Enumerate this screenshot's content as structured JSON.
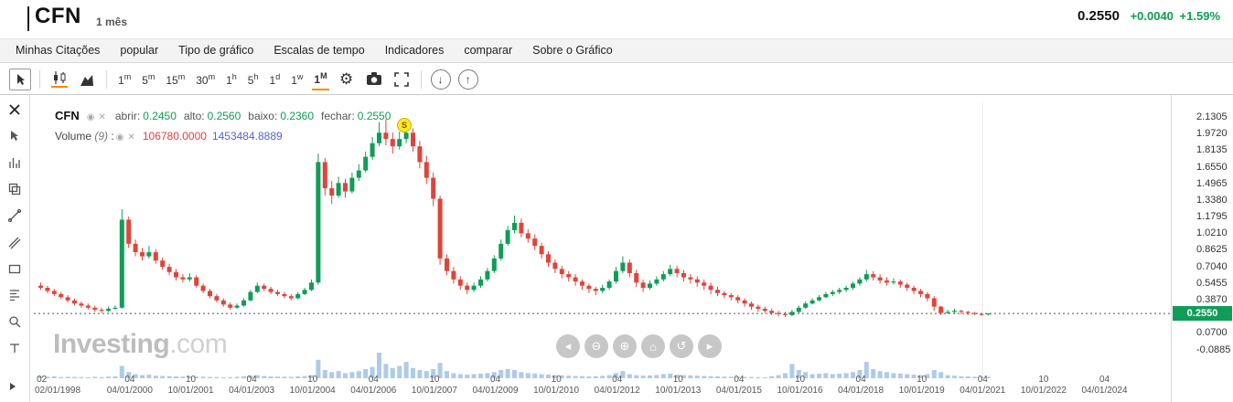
{
  "header": {
    "symbol": "CFN",
    "timeframe": "1 mês",
    "price": "0.2550",
    "change": "+0.0040",
    "change_pct": "+1.59%"
  },
  "menu": {
    "items": [
      "Minhas Citações",
      "popular",
      "Tipo de gráfico",
      "Escalas de tempo",
      "Indicadores",
      "comparar",
      "Sobre o Gráfico"
    ]
  },
  "toolbar": {
    "timeframes": [
      {
        "num": "1",
        "unit": "m"
      },
      {
        "num": "5",
        "unit": "m"
      },
      {
        "num": "15",
        "unit": "m"
      },
      {
        "num": "30",
        "unit": "m"
      },
      {
        "num": "1",
        "unit": "h"
      },
      {
        "num": "5",
        "unit": "h"
      },
      {
        "num": "1",
        "unit": "d"
      },
      {
        "num": "1",
        "unit": "w"
      },
      {
        "num": "1",
        "unit": "M"
      }
    ],
    "active_timeframe": "1M",
    "icons": [
      "cursor",
      "candlestick-chart",
      "area-chart",
      "settings-gear",
      "camera-snapshot",
      "fullscreen",
      "save-chart",
      "load-chart"
    ]
  },
  "sidebar": {
    "tools": [
      "close",
      "cursor",
      "bar-tools",
      "clone",
      "trendline",
      "pitchfork",
      "shapes",
      "fibonacci",
      "zoom",
      "text",
      "expand"
    ]
  },
  "legend": {
    "symbol": "CFN",
    "open_label": "abrir:",
    "open_value": "0.2450",
    "high_label": "alto:",
    "high_value": "0.2560",
    "low_label": "baixo:",
    "low_value": "0.2360",
    "close_label": "fechar:",
    "close_value": "0.2550",
    "volume_label": "Volume",
    "volume_period": "(9)",
    "colon": ":",
    "volume_value": "106780.0000",
    "volume_ma_value": "1453484.8889"
  },
  "marker": {
    "label": "S"
  },
  "watermark": {
    "name": "Investing",
    "suffix": ".com"
  },
  "nav_buttons": [
    {
      "name": "pan-left",
      "glyph": "◂"
    },
    {
      "name": "zoom-out",
      "glyph": "⊖"
    },
    {
      "name": "zoom-in",
      "glyph": "⊕"
    },
    {
      "name": "zoom-reset",
      "glyph": "⌂"
    },
    {
      "name": "refresh",
      "glyph": "↺"
    },
    {
      "name": "pan-right",
      "glyph": "▸"
    }
  ],
  "price_axis": {
    "current": "0.2550",
    "labels": [
      {
        "text": "2.1305",
        "value": 2.1305
      },
      {
        "text": "1.9720",
        "value": 1.972
      },
      {
        "text": "1.8135",
        "value": 1.8135
      },
      {
        "text": "1.6550",
        "value": 1.655
      },
      {
        "text": "1.4965",
        "value": 1.4965
      },
      {
        "text": "1.3380",
        "value": 1.338
      },
      {
        "text": "1.1795",
        "value": 1.1795
      },
      {
        "text": "1.0210",
        "value": 1.021
      },
      {
        "text": "0.8625",
        "value": 0.8625
      },
      {
        "text": "0.7040",
        "value": 0.704
      },
      {
        "text": "0.5455",
        "value": 0.5455
      },
      {
        "text": "0.3870",
        "value": 0.387
      },
      {
        "text": "0.0700",
        "value": 0.07
      },
      {
        "text": "-0.0885",
        "value": -0.0885
      }
    ]
  },
  "x_axis": {
    "ticks": [
      {
        "month": "02",
        "date": "02/01/1998",
        "m": 1
      },
      {
        "month": "04",
        "date": "04/01/2000",
        "m": 27
      },
      {
        "month": "10",
        "date": "10/01/2001",
        "m": 45
      },
      {
        "month": "04",
        "date": "04/01/2003",
        "m": 63
      },
      {
        "month": "10",
        "date": "10/01/2004",
        "m": 81
      },
      {
        "month": "04",
        "date": "04/01/2006",
        "m": 99
      },
      {
        "month": "10",
        "date": "10/01/2007",
        "m": 117
      },
      {
        "month": "04",
        "date": "04/01/2009",
        "m": 135
      },
      {
        "month": "10",
        "date": "10/01/2010",
        "m": 153
      },
      {
        "month": "04",
        "date": "04/01/2012",
        "m": 171
      },
      {
        "month": "10",
        "date": "10/01/2013",
        "m": 189
      },
      {
        "month": "04",
        "date": "04/01/2015",
        "m": 207
      },
      {
        "month": "10",
        "date": "10/01/2016",
        "m": 225
      },
      {
        "month": "04",
        "date": "04/01/2018",
        "m": 243
      },
      {
        "month": "10",
        "date": "10/01/2019",
        "m": 261
      },
      {
        "month": "04",
        "date": "04/01/2021",
        "m": 279
      },
      {
        "month": "10",
        "date": "10/01/2022",
        "m": 297
      },
      {
        "month": "04",
        "date": "04/01/2024",
        "m": 315
      }
    ]
  },
  "chart_data": {
    "type": "candlestick",
    "symbol": "CFN",
    "interval": "monthly",
    "x_start": "1998-01",
    "months_per_candle": 2,
    "current_price": 0.255,
    "y_axis": {
      "min": -0.0885,
      "max": 2.1305,
      "tick_step": 0.1585
    },
    "colors": {
      "up": "#0f9d58",
      "down": "#e0443a",
      "volume": "#aecbe8",
      "current_line": "#555555",
      "badge": "#0f9d58"
    },
    "ohlc": [
      [
        0.52,
        0.55,
        0.48,
        0.5
      ],
      [
        0.5,
        0.52,
        0.45,
        0.47
      ],
      [
        0.47,
        0.49,
        0.42,
        0.44
      ],
      [
        0.44,
        0.46,
        0.39,
        0.41
      ],
      [
        0.41,
        0.43,
        0.36,
        0.38
      ],
      [
        0.38,
        0.4,
        0.33,
        0.35
      ],
      [
        0.35,
        0.37,
        0.31,
        0.33
      ],
      [
        0.33,
        0.35,
        0.29,
        0.31
      ],
      [
        0.31,
        0.33,
        0.27,
        0.29
      ],
      [
        0.29,
        0.31,
        0.26,
        0.28
      ],
      [
        0.28,
        0.32,
        0.27,
        0.3
      ],
      [
        0.3,
        0.33,
        0.29,
        0.31
      ],
      [
        0.31,
        1.25,
        0.3,
        1.15
      ],
      [
        1.15,
        1.18,
        0.88,
        0.92
      ],
      [
        0.92,
        0.96,
        0.8,
        0.84
      ],
      [
        0.84,
        0.88,
        0.76,
        0.8
      ],
      [
        0.8,
        0.9,
        0.78,
        0.84
      ],
      [
        0.84,
        0.87,
        0.73,
        0.76
      ],
      [
        0.76,
        0.79,
        0.67,
        0.7
      ],
      [
        0.7,
        0.73,
        0.62,
        0.65
      ],
      [
        0.65,
        0.68,
        0.57,
        0.6
      ],
      [
        0.6,
        0.63,
        0.55,
        0.58
      ],
      [
        0.58,
        0.64,
        0.56,
        0.6
      ],
      [
        0.6,
        0.62,
        0.5,
        0.52
      ],
      [
        0.52,
        0.54,
        0.45,
        0.47
      ],
      [
        0.47,
        0.49,
        0.4,
        0.42
      ],
      [
        0.42,
        0.44,
        0.36,
        0.38
      ],
      [
        0.38,
        0.4,
        0.32,
        0.34
      ],
      [
        0.34,
        0.36,
        0.29,
        0.31
      ],
      [
        0.31,
        0.35,
        0.3,
        0.33
      ],
      [
        0.33,
        0.4,
        0.32,
        0.38
      ],
      [
        0.38,
        0.48,
        0.37,
        0.46
      ],
      [
        0.46,
        0.55,
        0.45,
        0.52
      ],
      [
        0.52,
        0.54,
        0.47,
        0.49
      ],
      [
        0.49,
        0.51,
        0.44,
        0.46
      ],
      [
        0.46,
        0.48,
        0.42,
        0.44
      ],
      [
        0.44,
        0.46,
        0.4,
        0.42
      ],
      [
        0.42,
        0.44,
        0.38,
        0.4
      ],
      [
        0.4,
        0.46,
        0.39,
        0.44
      ],
      [
        0.44,
        0.5,
        0.43,
        0.48
      ],
      [
        0.48,
        0.58,
        0.47,
        0.55
      ],
      [
        0.55,
        1.78,
        0.53,
        1.7
      ],
      [
        1.7,
        1.74,
        1.38,
        1.45
      ],
      [
        1.45,
        1.52,
        1.3,
        1.38
      ],
      [
        1.38,
        1.56,
        1.36,
        1.5
      ],
      [
        1.5,
        1.54,
        1.36,
        1.42
      ],
      [
        1.42,
        1.6,
        1.4,
        1.55
      ],
      [
        1.55,
        1.68,
        1.52,
        1.62
      ],
      [
        1.62,
        1.8,
        1.6,
        1.75
      ],
      [
        1.75,
        1.94,
        1.72,
        1.88
      ],
      [
        1.88,
        2.08,
        1.85,
        1.98
      ],
      [
        1.98,
        2.11,
        1.86,
        1.92
      ],
      [
        1.92,
        1.98,
        1.78,
        1.85
      ],
      [
        1.85,
        1.99,
        1.82,
        1.92
      ],
      [
        1.92,
        2.06,
        1.88,
        1.98
      ],
      [
        1.98,
        2.02,
        1.8,
        1.85
      ],
      [
        1.85,
        1.9,
        1.64,
        1.7
      ],
      [
        1.7,
        1.76,
        1.49,
        1.55
      ],
      [
        1.55,
        1.6,
        1.28,
        1.35
      ],
      [
        1.35,
        1.38,
        0.72,
        0.78
      ],
      [
        0.78,
        0.82,
        0.62,
        0.66
      ],
      [
        0.66,
        0.7,
        0.54,
        0.58
      ],
      [
        0.58,
        0.61,
        0.48,
        0.52
      ],
      [
        0.52,
        0.55,
        0.44,
        0.48
      ],
      [
        0.48,
        0.55,
        0.46,
        0.52
      ],
      [
        0.52,
        0.61,
        0.5,
        0.58
      ],
      [
        0.58,
        0.69,
        0.56,
        0.66
      ],
      [
        0.66,
        0.81,
        0.64,
        0.78
      ],
      [
        0.78,
        0.96,
        0.76,
        0.92
      ],
      [
        0.92,
        1.09,
        0.9,
        1.05
      ],
      [
        1.05,
        1.19,
        1.02,
        1.12
      ],
      [
        1.12,
        1.16,
        0.98,
        1.02
      ],
      [
        1.02,
        1.06,
        0.93,
        0.97
      ],
      [
        0.97,
        1.01,
        0.86,
        0.9
      ],
      [
        0.9,
        0.93,
        0.78,
        0.82
      ],
      [
        0.82,
        0.85,
        0.7,
        0.74
      ],
      [
        0.74,
        0.77,
        0.64,
        0.68
      ],
      [
        0.68,
        0.71,
        0.59,
        0.63
      ],
      [
        0.63,
        0.66,
        0.56,
        0.6
      ],
      [
        0.6,
        0.63,
        0.52,
        0.56
      ],
      [
        0.56,
        0.58,
        0.48,
        0.52
      ],
      [
        0.52,
        0.54,
        0.45,
        0.49
      ],
      [
        0.49,
        0.51,
        0.43,
        0.47
      ],
      [
        0.47,
        0.53,
        0.45,
        0.5
      ],
      [
        0.5,
        0.58,
        0.48,
        0.56
      ],
      [
        0.56,
        0.7,
        0.54,
        0.66
      ],
      [
        0.66,
        0.8,
        0.64,
        0.74
      ],
      [
        0.74,
        0.77,
        0.6,
        0.64
      ],
      [
        0.64,
        0.67,
        0.51,
        0.55
      ],
      [
        0.55,
        0.58,
        0.46,
        0.5
      ],
      [
        0.5,
        0.57,
        0.48,
        0.54
      ],
      [
        0.54,
        0.61,
        0.52,
        0.58
      ],
      [
        0.58,
        0.66,
        0.56,
        0.63
      ],
      [
        0.63,
        0.72,
        0.61,
        0.68
      ],
      [
        0.68,
        0.71,
        0.6,
        0.64
      ],
      [
        0.64,
        0.67,
        0.56,
        0.6
      ],
      [
        0.6,
        0.63,
        0.54,
        0.58
      ],
      [
        0.58,
        0.61,
        0.51,
        0.55
      ],
      [
        0.55,
        0.58,
        0.48,
        0.52
      ],
      [
        0.52,
        0.55,
        0.44,
        0.48
      ],
      [
        0.48,
        0.51,
        0.42,
        0.45
      ],
      [
        0.45,
        0.47,
        0.4,
        0.43
      ],
      [
        0.43,
        0.45,
        0.38,
        0.41
      ],
      [
        0.41,
        0.43,
        0.35,
        0.38
      ],
      [
        0.38,
        0.4,
        0.32,
        0.35
      ],
      [
        0.35,
        0.37,
        0.29,
        0.32
      ],
      [
        0.32,
        0.34,
        0.27,
        0.3
      ],
      [
        0.3,
        0.32,
        0.26,
        0.28
      ],
      [
        0.28,
        0.3,
        0.24,
        0.26
      ],
      [
        0.26,
        0.28,
        0.23,
        0.25
      ],
      [
        0.25,
        0.27,
        0.22,
        0.24
      ],
      [
        0.24,
        0.29,
        0.23,
        0.27
      ],
      [
        0.27,
        0.33,
        0.26,
        0.31
      ],
      [
        0.31,
        0.37,
        0.3,
        0.35
      ],
      [
        0.35,
        0.4,
        0.34,
        0.38
      ],
      [
        0.38,
        0.43,
        0.37,
        0.41
      ],
      [
        0.41,
        0.46,
        0.4,
        0.44
      ],
      [
        0.44,
        0.48,
        0.42,
        0.46
      ],
      [
        0.46,
        0.5,
        0.44,
        0.48
      ],
      [
        0.48,
        0.52,
        0.46,
        0.5
      ],
      [
        0.5,
        0.56,
        0.48,
        0.54
      ],
      [
        0.54,
        0.6,
        0.52,
        0.58
      ],
      [
        0.58,
        0.67,
        0.56,
        0.63
      ],
      [
        0.63,
        0.66,
        0.57,
        0.6
      ],
      [
        0.6,
        0.63,
        0.54,
        0.57
      ],
      [
        0.57,
        0.6,
        0.52,
        0.55
      ],
      [
        0.55,
        0.59,
        0.53,
        0.56
      ],
      [
        0.56,
        0.58,
        0.5,
        0.53
      ],
      [
        0.53,
        0.55,
        0.47,
        0.5
      ],
      [
        0.5,
        0.52,
        0.44,
        0.47
      ],
      [
        0.47,
        0.49,
        0.41,
        0.44
      ],
      [
        0.44,
        0.46,
        0.37,
        0.4
      ],
      [
        0.4,
        0.42,
        0.28,
        0.32
      ],
      [
        0.32,
        0.33,
        0.24,
        0.26
      ],
      [
        0.26,
        0.29,
        0.25,
        0.27
      ],
      [
        0.27,
        0.3,
        0.26,
        0.28
      ],
      [
        0.28,
        0.29,
        0.25,
        0.27
      ],
      [
        0.27,
        0.28,
        0.24,
        0.26
      ],
      [
        0.26,
        0.27,
        0.24,
        0.25
      ],
      [
        0.25,
        0.26,
        0.235,
        0.245
      ],
      [
        0.245,
        0.256,
        0.236,
        0.255
      ]
    ],
    "volume": [
      2,
      1.5,
      1.8,
      1.2,
      1.5,
      1.3,
      1.2,
      1,
      1.4,
      1.1,
      1.6,
      1.8,
      12,
      6,
      4,
      3,
      3.5,
      2.5,
      2.2,
      2,
      1.8,
      1.6,
      2,
      1.7,
      1.5,
      1.3,
      1.2,
      1,
      1.1,
      1.4,
      2,
      2.6,
      3,
      2.2,
      1.8,
      1.6,
      1.5,
      1.4,
      1.8,
      2.2,
      3,
      18,
      8,
      6,
      7,
      5,
      6,
      7,
      9,
      11,
      25,
      14,
      10,
      12,
      16,
      10,
      8,
      7,
      9,
      15,
      7,
      5,
      4,
      3.5,
      4,
      4.5,
      5,
      6,
      8,
      9,
      8,
      6,
      5,
      4.5,
      4,
      3.5,
      3,
      2.8,
      2.5,
      2.2,
      2,
      1.8,
      2,
      2.4,
      3,
      5,
      7,
      4,
      3,
      2.5,
      2.8,
      3.2,
      4,
      4.5,
      3.5,
      3,
      2.8,
      2.5,
      2.2,
      2,
      1.8,
      1.6,
      1.5,
      1.4,
      1.3,
      1.2,
      1.1,
      1,
      2,
      3,
      5,
      14,
      8,
      6,
      4,
      4.5,
      5,
      4,
      4.5,
      5,
      6,
      8,
      16,
      9,
      7,
      6,
      5,
      4.5,
      4,
      3.5,
      3,
      4,
      8,
      6,
      3,
      2.5,
      2,
      1.8,
      1.5,
      1.2,
      1.4
    ]
  }
}
